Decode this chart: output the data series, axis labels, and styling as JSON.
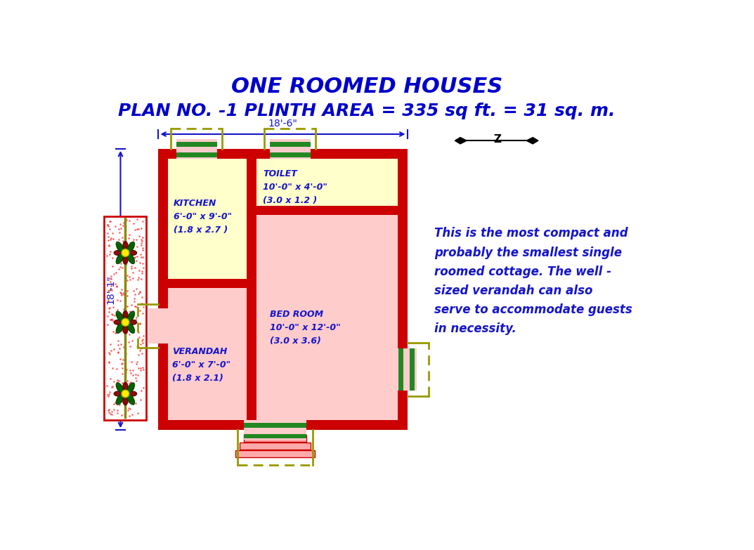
{
  "title_line1": "ONE ROOMED HOUSES",
  "title_line2": "PLAN NO. -1 PLINTH AREA = 335 sq ft. = 31 sq. m.",
  "title_color": "#0000CC",
  "bg_color": "#FFFFFF",
  "blue": "#1515CC",
  "wall_color": "#CC0000",
  "kitchen_fill": "#FFFFCC",
  "toilet_fill": "#FFFFCC",
  "bedroom_fill": "#FFCCCC",
  "verandah_fill": "#FFCCCC",
  "olive": "#999900",
  "green_bar": "#228822",
  "dim_label": "18'-6\"",
  "height_label": "18'-1\"",
  "description": "This is the most compact and\nprobably the smallest single\nroomed cottage. The well -\nsized verandah can also\nserve to accommodate guests\nin necessity."
}
